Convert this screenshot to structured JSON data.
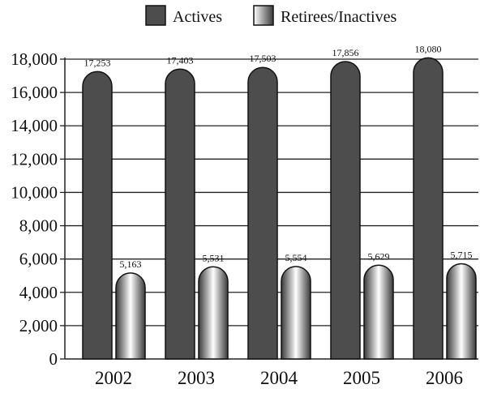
{
  "chart_data": {
    "type": "bar",
    "title": "",
    "xlabel": "",
    "ylabel": "",
    "categories": [
      "2002",
      "2003",
      "2004",
      "2005",
      "2006"
    ],
    "series": [
      {
        "name": "Actives",
        "values": [
          17253,
          17403,
          17503,
          17856,
          18080
        ],
        "labels": [
          "17,253",
          "17,403",
          "17,503",
          "17,856",
          "18,080"
        ],
        "color": "#4d4d4d"
      },
      {
        "name": "Retirees/Inactives",
        "values": [
          5163,
          5531,
          5554,
          5629,
          5715
        ],
        "labels": [
          "5,163",
          "5,531",
          "5,554",
          "5,629",
          "5,715"
        ],
        "color": "gradient-gray-white"
      }
    ],
    "ylim": [
      0,
      18000
    ],
    "yticks": [
      0,
      2000,
      4000,
      6000,
      8000,
      10000,
      12000,
      14000,
      16000,
      18000
    ],
    "ytick_labels": [
      "0",
      "2,000",
      "4,000",
      "6,000",
      "8,000",
      "10,000",
      "12,000",
      "14,000",
      "16,000",
      "18,000"
    ],
    "grid": "horizontal",
    "legend_position": "top",
    "bar_shape": "rounded-top"
  }
}
